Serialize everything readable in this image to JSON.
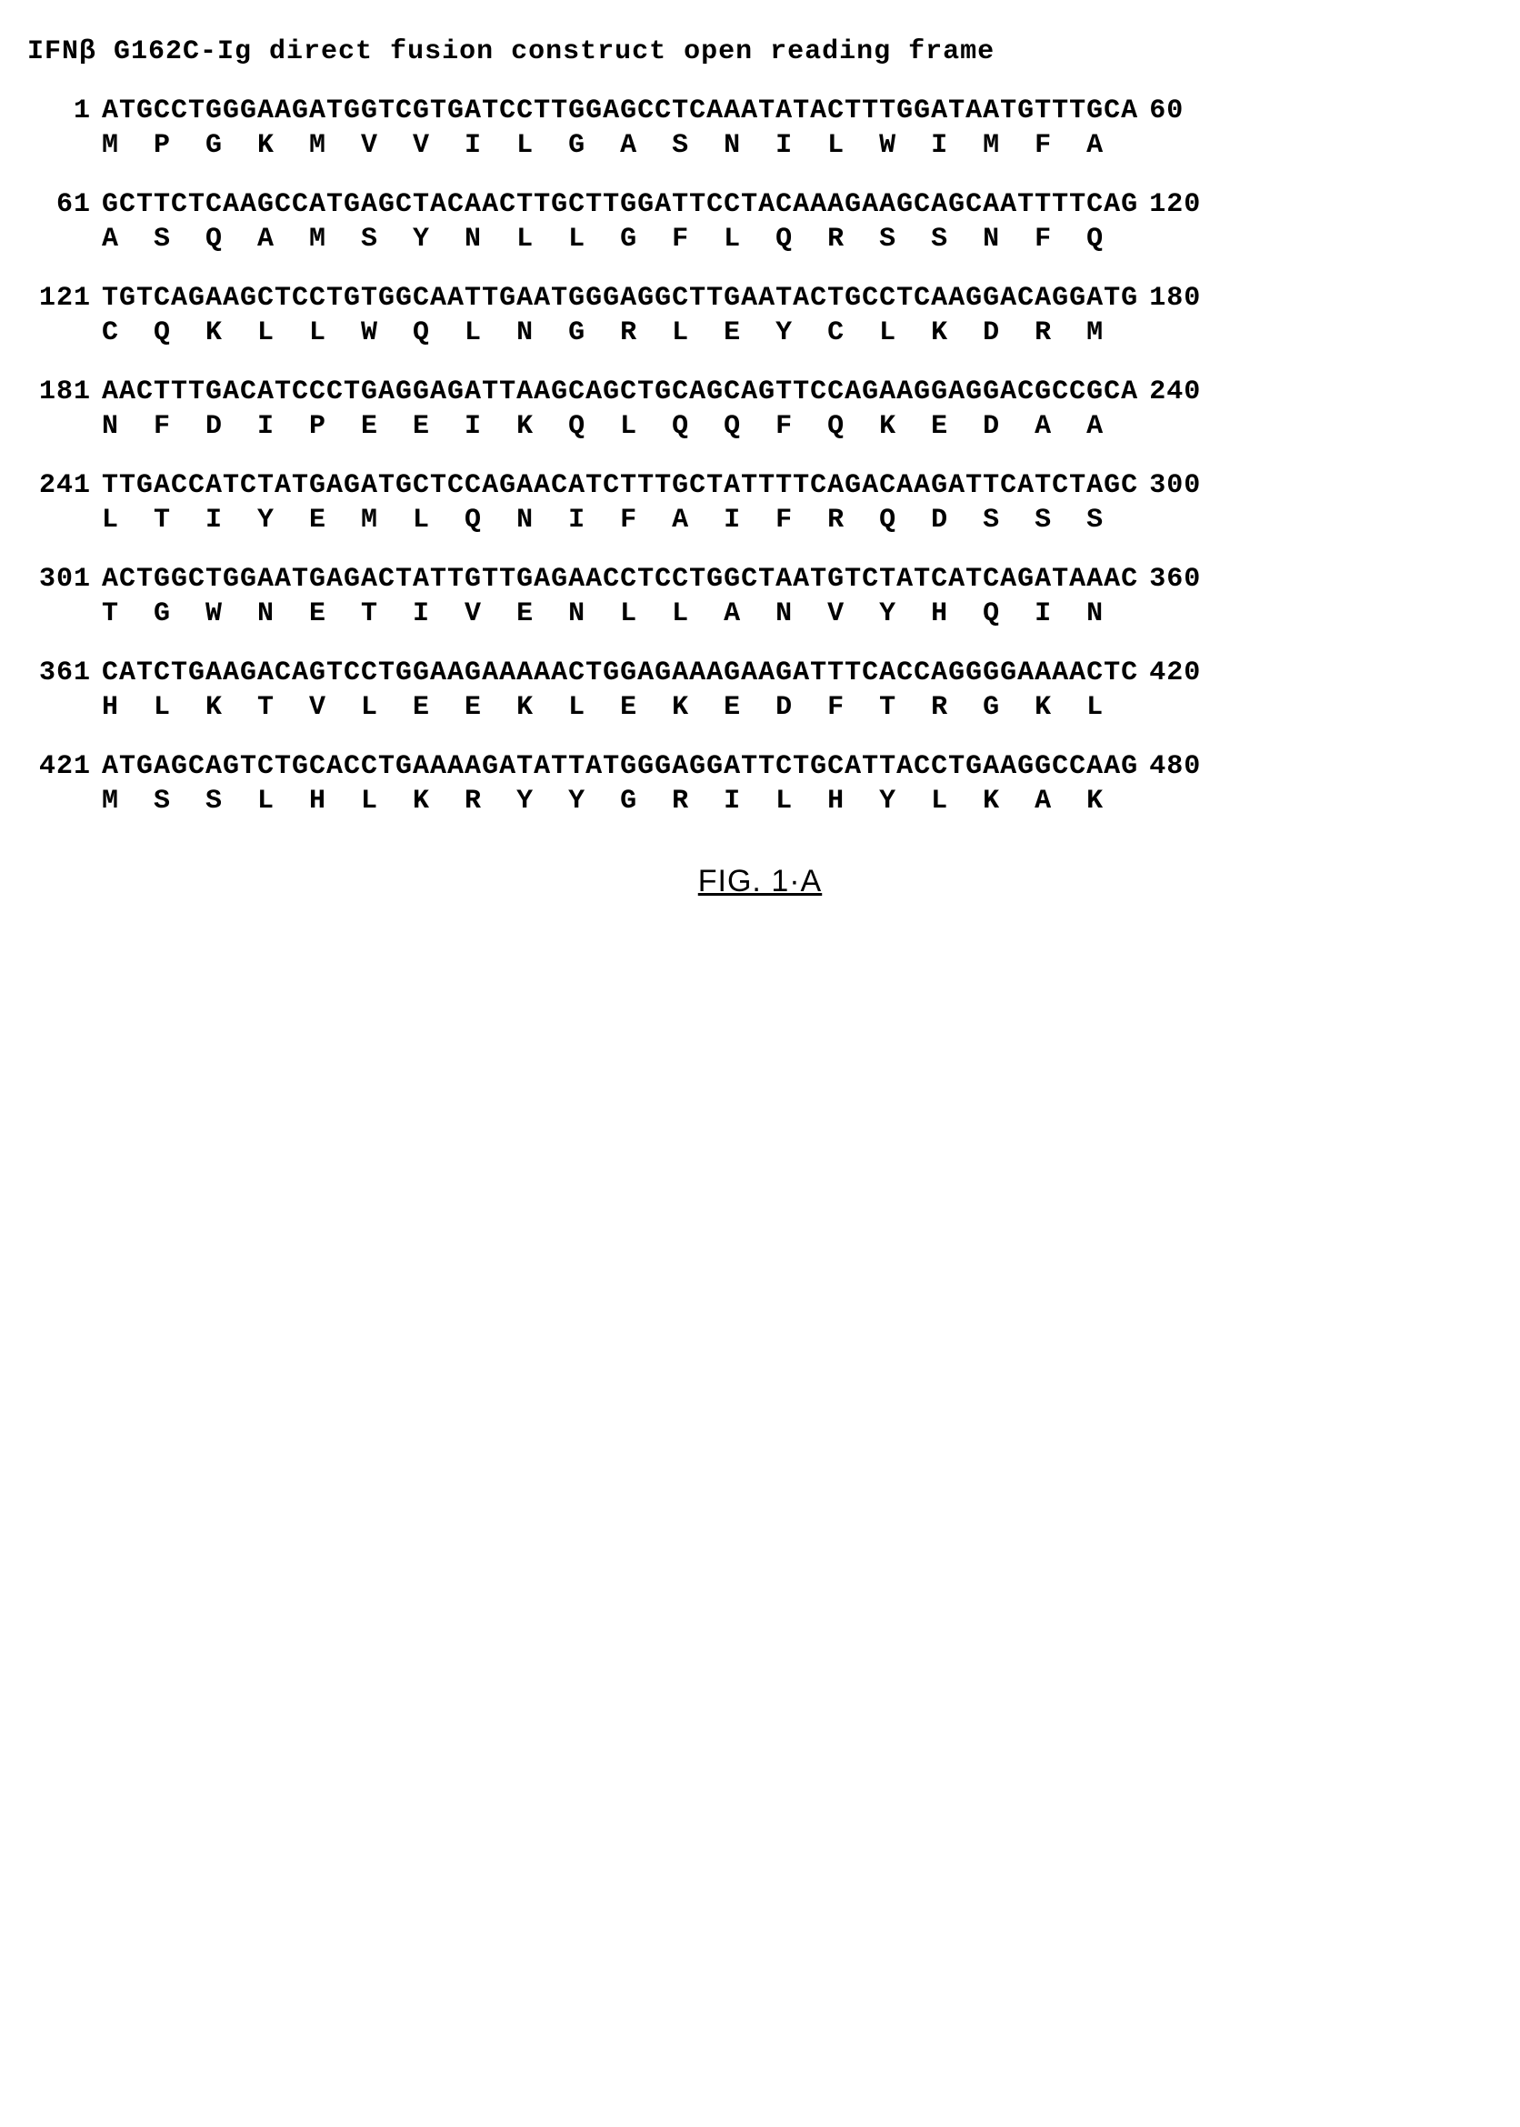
{
  "title": "IFNβ G162C-Ig direct fusion construct open reading frame",
  "figure_label": "FIG. 1·A",
  "sequence_blocks": [
    {
      "start": 1,
      "end": 60,
      "nt": "ATGCCTGGGAAGATGGTCGTGATCCTTGGAGCCTCAAATATACTTTGGATAATGTTTGCA",
      "aa": "M  P  G  K  M  V  V  I  L  G  A  S  N  I  L  W  I  M  F  A"
    },
    {
      "start": 61,
      "end": 120,
      "nt": "GCTTCTCAAGCCATGAGCTACAACTTGCTTGGATTCCTACAAAGAAGCAGCAATTTTCAG",
      "aa": "A  S  Q  A  M  S  Y  N  L  L  G  F  L  Q  R  S  S  N  F  Q"
    },
    {
      "start": 121,
      "end": 180,
      "nt": "TGTCAGAAGCTCCTGTGGCAATTGAATGGGAGGCTTGAATACTGCCTCAAGGACAGGATG",
      "aa": "C  Q  K  L  L  W  Q  L  N  G  R  L  E  Y  C  L  K  D  R  M"
    },
    {
      "start": 181,
      "end": 240,
      "nt": "AACTTTGACATCCCTGAGGAGATTAAGCAGCTGCAGCAGTTCCAGAAGGAGGACGCCGCA",
      "aa": "N  F  D  I  P  E  E  I  K  Q  L  Q  Q  F  Q  K  E  D  A  A"
    },
    {
      "start": 241,
      "end": 300,
      "nt": "TTGACCATCTATGAGATGCTCCAGAACATCTTTGCTATTTTCAGACAAGATTCATCTAGC",
      "aa": "L  T  I  Y  E  M  L  Q  N  I  F  A  I  F  R  Q  D  S  S  S"
    },
    {
      "start": 301,
      "end": 360,
      "nt": "ACTGGCTGGAATGAGACTATTGTTGAGAACCTCCTGGCTAATGTCTATCATCAGATAAAC",
      "aa": "T  G  W  N  E  T  I  V  E  N  L  L  A  N  V  Y  H  Q  I  N"
    },
    {
      "start": 361,
      "end": 420,
      "nt": "CATCTGAAGACAGTCCTGGAAGAAAAACTGGAGAAAGAAGATTTCACCAGGGGAAAACTC",
      "aa": "H  L  K  T  V  L  E  E  K  L  E  K  E  D  F  T  R  G  K  L"
    },
    {
      "start": 421,
      "end": 480,
      "nt": "ATGAGCAGTCTGCACCTGAAAAGATATTATGGGAGGATTCTGCATTACCTGAAGGCCAAG",
      "aa": "M  S  S  L  H  L  K  R  Y  Y  G  R  I  L  H  Y  L  K  A  K"
    }
  ]
}
